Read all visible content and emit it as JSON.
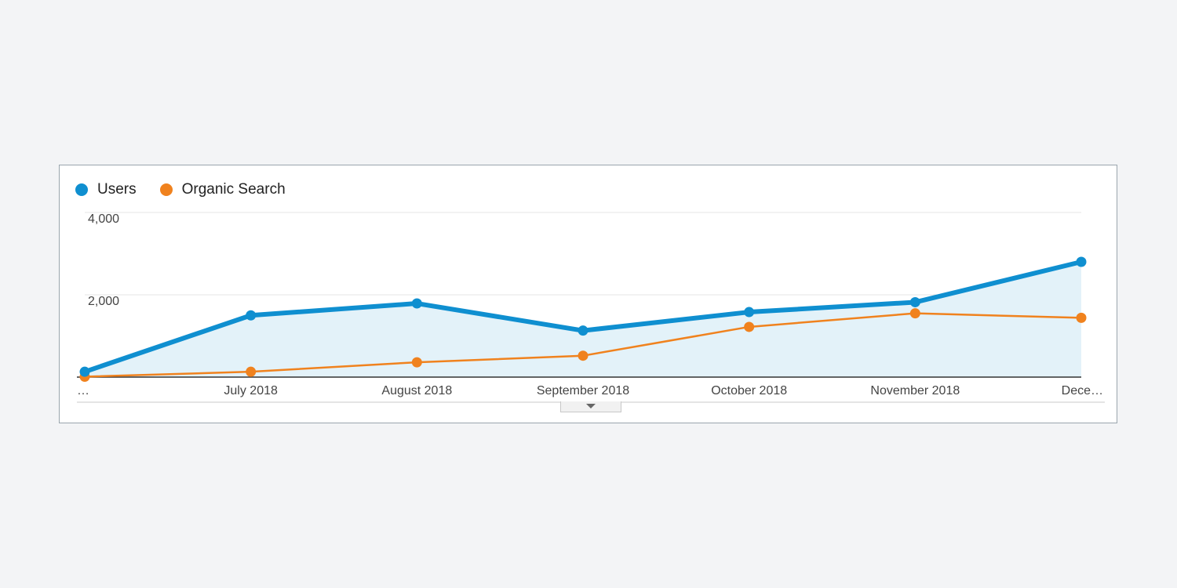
{
  "legend": {
    "users_label": "Users",
    "organic_label": "Organic Search"
  },
  "colors": {
    "users": "#0f8fd0",
    "organic": "#f0821e",
    "area": "#e3f2f9"
  },
  "chart_data": {
    "type": "line",
    "categories": [
      "…",
      "July 2018",
      "August 2018",
      "September 2018",
      "October 2018",
      "November 2018",
      "Dece…"
    ],
    "series": [
      {
        "name": "Users",
        "values": [
          130,
          1500,
          1790,
          1130,
          1580,
          1820,
          2800
        ]
      },
      {
        "name": "Organic Search",
        "values": [
          10,
          130,
          360,
          520,
          1220,
          1550,
          1440
        ]
      }
    ],
    "y_ticks": [
      {
        "value": 2000,
        "label": "2,000"
      },
      {
        "value": 4000,
        "label": "4,000"
      }
    ],
    "ylim": [
      0,
      4000
    ],
    "grid": true,
    "legend_position": "top-left"
  }
}
